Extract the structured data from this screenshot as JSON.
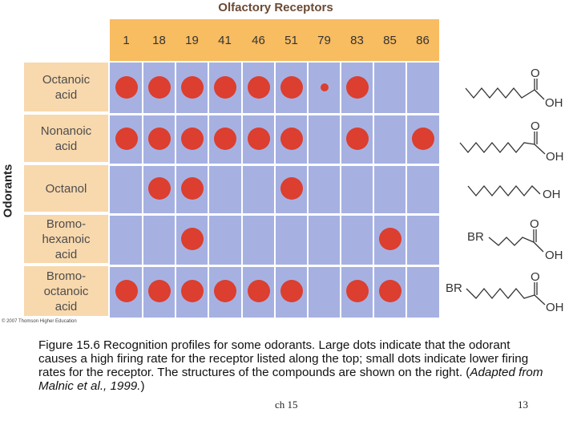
{
  "title": "Olfactory Receptors",
  "y_axis_label": "Odorants",
  "receptors": [
    "1",
    "18",
    "19",
    "41",
    "46",
    "51",
    "79",
    "83",
    "85",
    "86"
  ],
  "odorants": [
    {
      "label": "Octanoic\nacid",
      "responses": [
        "L",
        "L",
        "L",
        "L",
        "L",
        "L",
        "S",
        "L",
        "",
        ""
      ]
    },
    {
      "label": "Nonanoic\nacid",
      "responses": [
        "L",
        "L",
        "L",
        "L",
        "L",
        "L",
        "",
        "L",
        "",
        "L"
      ]
    },
    {
      "label": "Octanol",
      "responses": [
        "",
        "L",
        "L",
        "",
        "",
        "L",
        "",
        "",
        "",
        ""
      ]
    },
    {
      "label": "Bromo-\nhexanoic\nacid",
      "responses": [
        "",
        "",
        "L",
        "",
        "",
        "",
        "",
        "",
        "L",
        ""
      ]
    },
    {
      "label": "Bromo-\noctanoic\nacid",
      "responses": [
        "L",
        "L",
        "L",
        "L",
        "L",
        "L",
        "",
        "L",
        "L",
        ""
      ]
    }
  ],
  "structures": [
    {
      "br": "",
      "o": "O",
      "oh": "OH"
    },
    {
      "br": "",
      "o": "O",
      "oh": "OH"
    },
    {
      "br": "",
      "o": "",
      "oh": "OH"
    },
    {
      "br": "BR",
      "o": "O",
      "oh": "OH"
    },
    {
      "br": "BR",
      "o": "O",
      "oh": "OH"
    }
  ],
  "copyright": "© 2007 Thomson Higher Education",
  "caption": {
    "main": "Figure 15.6  Recognition profiles for some odorants. Large dots indicate that the odorant causes a high firing rate for the receptor listed along the top; small dots indicate lower firing rates for the receptor. The structures of the compounds are shown on the right. (",
    "italic": "Adapted from Malnic et al., 1999.",
    "end": ")"
  },
  "footer": {
    "left": "ch 15",
    "right": "13"
  },
  "colors": {
    "dot": "#dc3e2f",
    "grid": "#a6b1e2",
    "header": "#f8bc61",
    "rowlabel": "#f8d8ad"
  }
}
